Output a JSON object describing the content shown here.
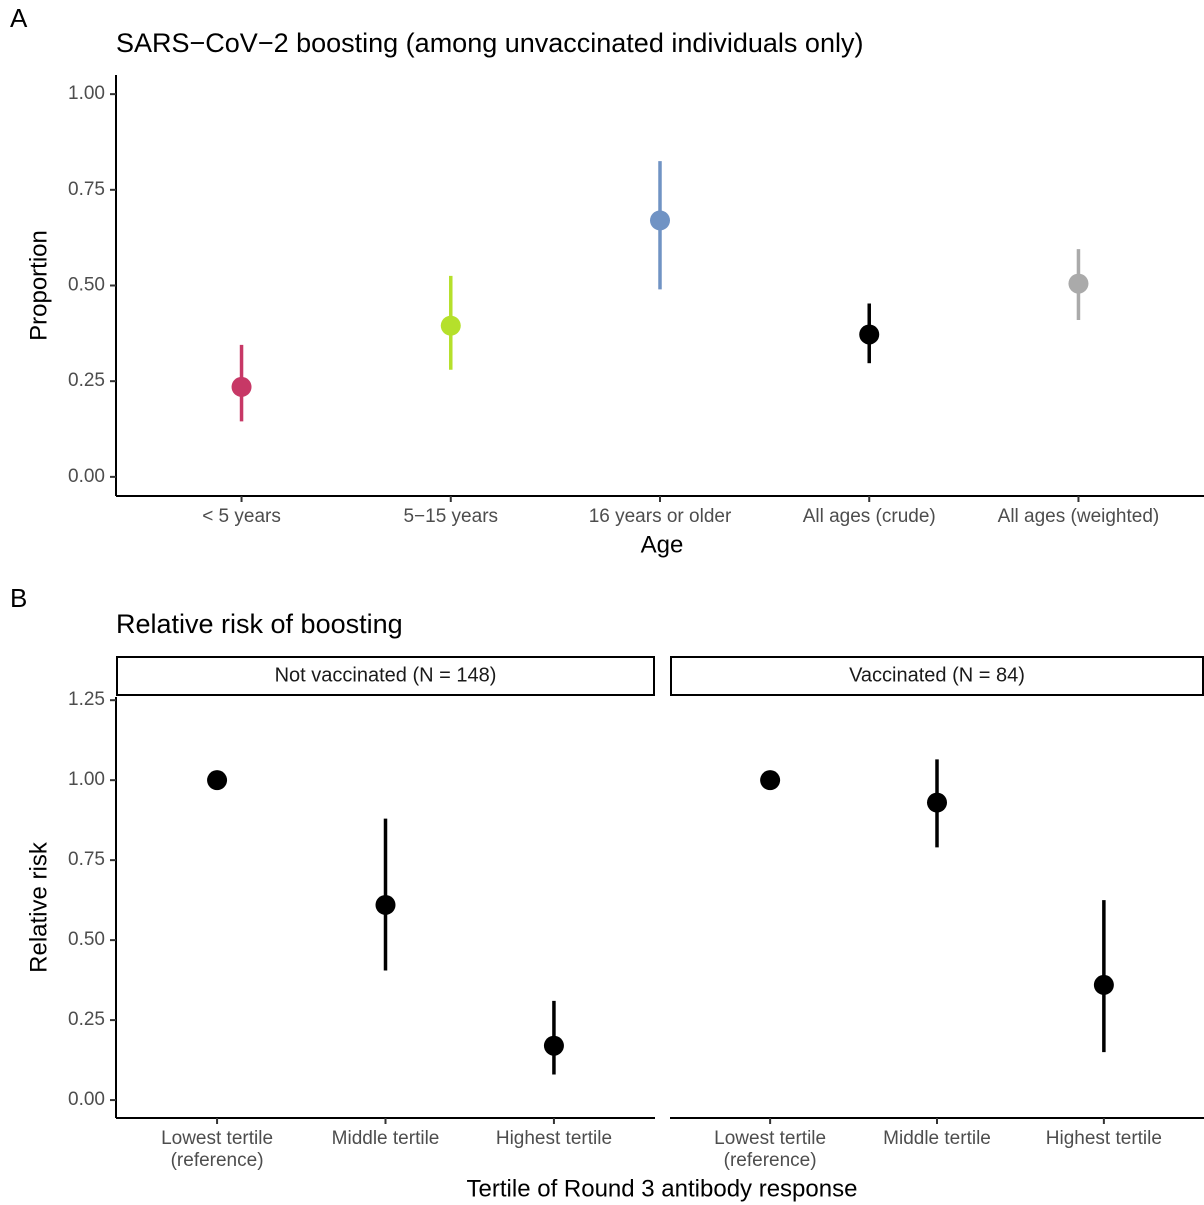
{
  "chart_data": [
    {
      "type": "pointrange",
      "panel_label": "A",
      "title": "SARS−CoV−2 boosting (among unvaccinated individuals only)",
      "x_label": "Age",
      "y_label": "Proportion",
      "categories": [
        "< 5 years",
        "5−15 years",
        "16 years or older",
        "All ages (crude)",
        "All ages (weighted)"
      ],
      "values": [
        0.235,
        0.395,
        0.67,
        0.372,
        0.505
      ],
      "lower": [
        0.145,
        0.28,
        0.49,
        0.297,
        0.41
      ],
      "upper": [
        0.345,
        0.525,
        0.825,
        0.453,
        0.595
      ],
      "colors": [
        "#c73866",
        "#b5e02b",
        "#7093c4",
        "#000000",
        "#aaaaaa"
      ],
      "ylim": [
        -0.05,
        1.05
      ],
      "yticks": [
        {
          "value": 0,
          "label": "0.00"
        },
        {
          "value": 0.25,
          "label": "0.25"
        },
        {
          "value": 0.5,
          "label": "0.50"
        },
        {
          "value": 0.75,
          "label": "0.75"
        },
        {
          "value": 1,
          "label": "1.00"
        }
      ]
    },
    {
      "type": "pointrange",
      "panel_label": "B",
      "title": "Relative risk of boosting",
      "x_label": "Tertile of Round 3 antibody response",
      "y_label": "Relative risk",
      "categories": [
        [
          "Lowest tertile",
          "(reference)"
        ],
        [
          "Middle tertile"
        ],
        [
          "Highest tertile"
        ]
      ],
      "color": "#000000",
      "facets": [
        {
          "title": "Not vaccinated (N = 148)",
          "values": [
            1.0,
            0.61,
            0.17
          ],
          "lower": [
            null,
            0.405,
            0.08
          ],
          "upper": [
            null,
            0.88,
            0.31
          ]
        },
        {
          "title": "Vaccinated (N = 84)",
          "values": [
            1.0,
            0.93,
            0.36
          ],
          "lower": [
            null,
            0.79,
            0.15
          ],
          "upper": [
            null,
            1.065,
            0.625
          ]
        }
      ],
      "ylim": [
        -0.056,
        1.26
      ],
      "yticks": [
        {
          "value": 0,
          "label": "0.00"
        },
        {
          "value": 0.25,
          "label": "0.25"
        },
        {
          "value": 0.5,
          "label": "0.50"
        },
        {
          "value": 0.75,
          "label": "0.75"
        },
        {
          "value": 1,
          "label": "1.00"
        },
        {
          "value": 1.25,
          "label": "1.25"
        }
      ]
    }
  ]
}
